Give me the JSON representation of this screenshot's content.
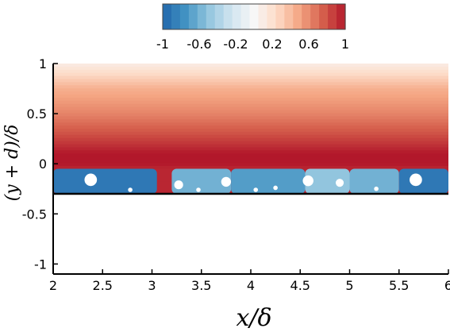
{
  "chart_data": {
    "type": "heatmap",
    "title": "",
    "xlabel": "x/δ",
    "ylabel": "(y + d)/δ",
    "xlim": [
      2,
      6
    ],
    "ylim": [
      -1.1,
      1
    ],
    "x_ticks": [
      "2",
      "2.5",
      "3",
      "3.5",
      "4",
      "4.5",
      "5",
      "5.5",
      "6"
    ],
    "y_ticks": [
      "1",
      "0.5",
      "0",
      "-0.5",
      "-1"
    ],
    "wall_y": -0.3,
    "colorbar": {
      "range": [
        -1,
        1
      ],
      "levels": 21,
      "tick_labels": [
        "-1",
        "-0.6",
        "-0.2",
        "0.2",
        "0.6",
        "1"
      ],
      "colormap": [
        "#2166ac",
        "#4393c3",
        "#92c5de",
        "#d1e5f0",
        "#f7f7f7",
        "#fddbc7",
        "#f4a582",
        "#d6604d",
        "#b2182b"
      ]
    },
    "field_profile": {
      "y": [
        1.0,
        0.75,
        0.5,
        0.3,
        0.1,
        0.0,
        -0.05
      ],
      "value": [
        0.1,
        0.45,
        0.62,
        0.8,
        1.0,
        1.0,
        0.95
      ]
    },
    "negative_zones": [
      {
        "x_start": 2.0,
        "x_end": 3.05,
        "value": -0.9
      },
      {
        "x_start": 3.2,
        "x_end": 3.8,
        "value": -0.6
      },
      {
        "x_start": 3.8,
        "x_end": 4.55,
        "value": -0.7
      },
      {
        "x_start": 4.55,
        "x_end": 5.0,
        "value": -0.5
      },
      {
        "x_start": 5.0,
        "x_end": 5.5,
        "value": -0.6
      },
      {
        "x_start": 5.5,
        "x_end": 6.0,
        "value": -0.9
      }
    ],
    "particles": [
      {
        "x": 2.38,
        "y": -0.16,
        "r": 0.14
      },
      {
        "x": 2.78,
        "y": -0.26,
        "r": 0.05
      },
      {
        "x": 3.27,
        "y": -0.21,
        "r": 0.1
      },
      {
        "x": 3.47,
        "y": -0.26,
        "r": 0.05
      },
      {
        "x": 3.75,
        "y": -0.18,
        "r": 0.11
      },
      {
        "x": 4.05,
        "y": -0.26,
        "r": 0.05
      },
      {
        "x": 4.25,
        "y": -0.24,
        "r": 0.05
      },
      {
        "x": 4.58,
        "y": -0.17,
        "r": 0.12
      },
      {
        "x": 4.9,
        "y": -0.19,
        "r": 0.09
      },
      {
        "x": 5.27,
        "y": -0.25,
        "r": 0.05
      },
      {
        "x": 5.67,
        "y": -0.16,
        "r": 0.14
      }
    ]
  }
}
